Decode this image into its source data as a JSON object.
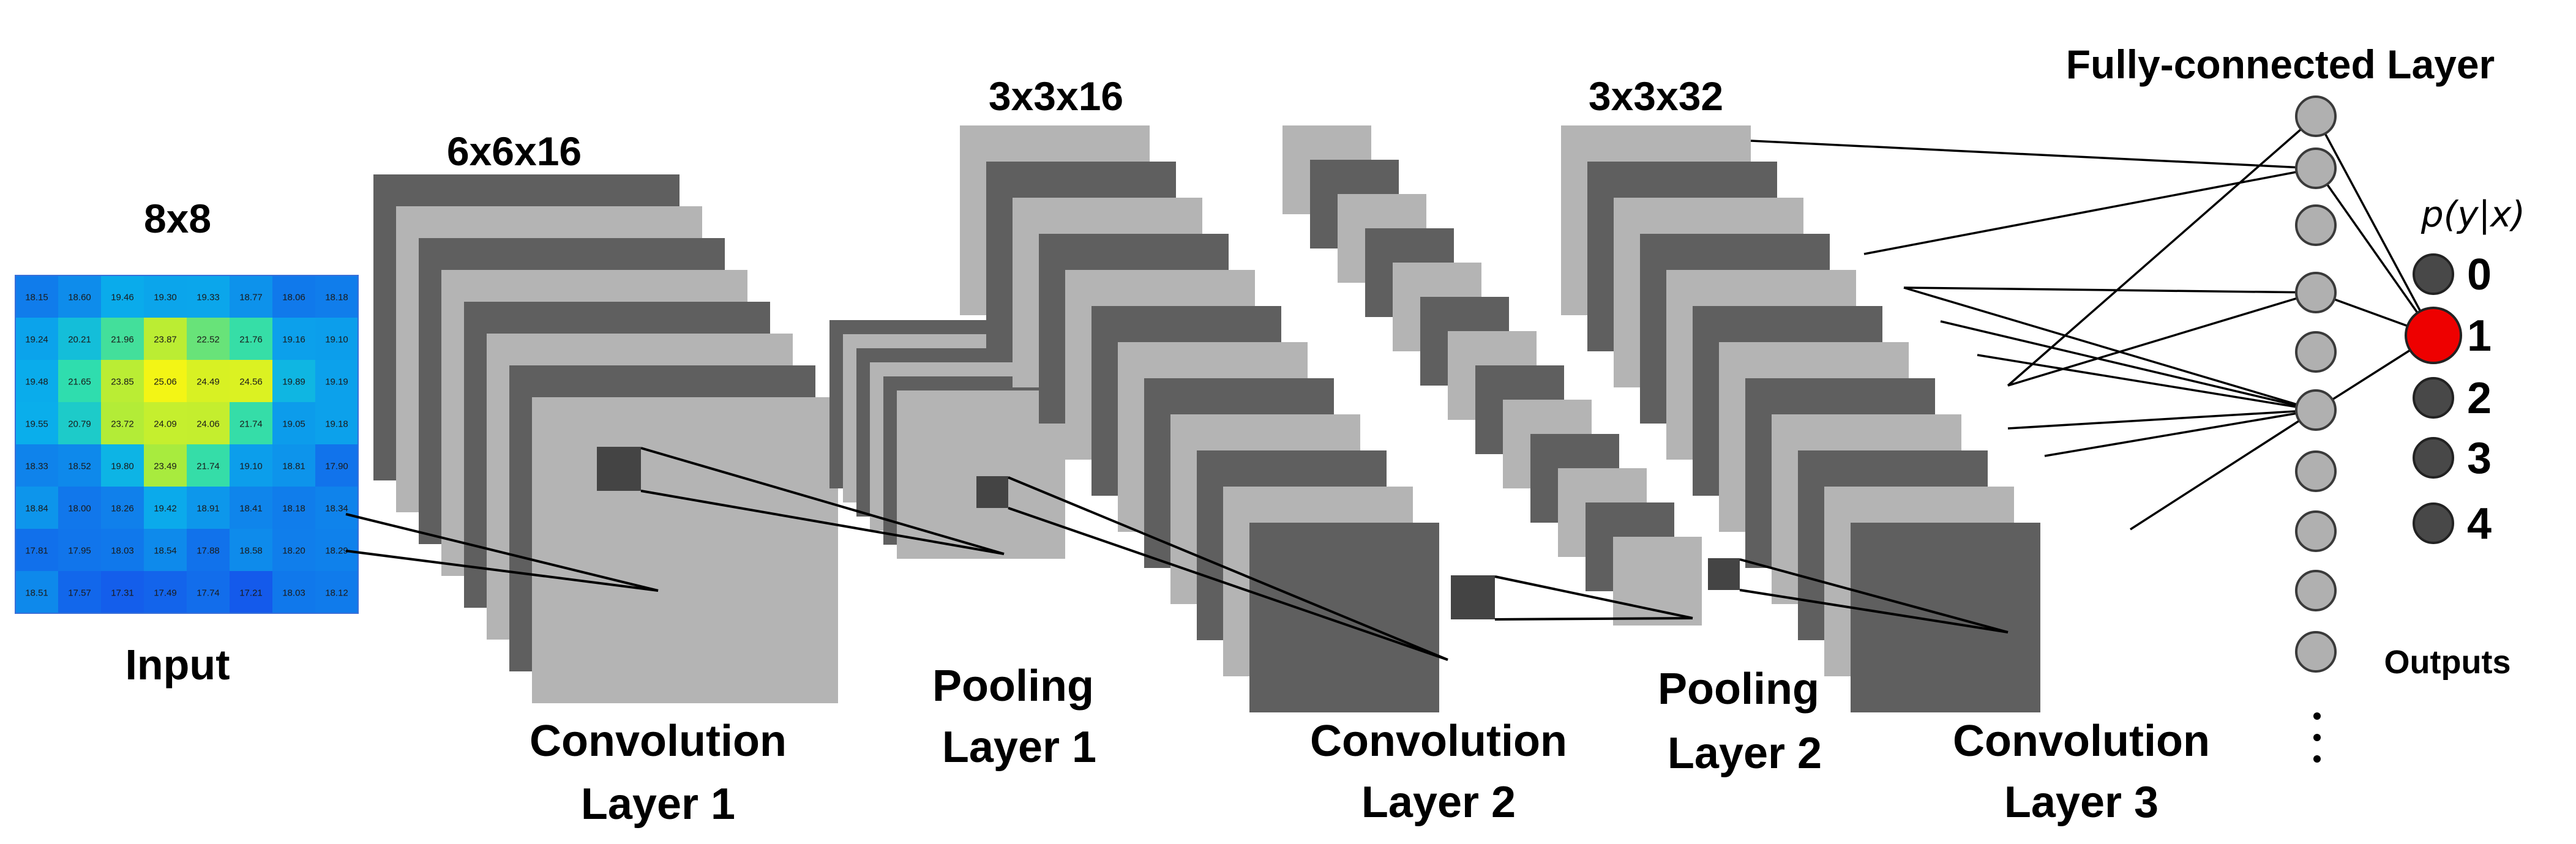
{
  "labels": {
    "input_size": "8x8",
    "input": "Input",
    "conv1_size": "6x6x16",
    "conv1_line1": "Convolution",
    "conv1_line2": "Layer 1",
    "pool1_size": "3x3x16",
    "pool1_line1": "Pooling",
    "pool1_line2": "Layer 1",
    "conv2_line1": "Convolution",
    "conv2_line2": "Layer 2",
    "conv3_size": "3x3x32",
    "pool2_line1": "Pooling",
    "pool2_line2": "Layer 2",
    "conv3_line1": "Convolution",
    "conv3_line2": "Layer 3",
    "fc": "Fully-connected Layer",
    "outputs": "Outputs",
    "prob": "p(y|x)"
  },
  "input_grid": [
    [
      "18.15",
      "18.60",
      "19.46",
      "19.30",
      "19.33",
      "18.77",
      "18.06",
      "18.18"
    ],
    [
      "19.24",
      "20.21",
      "21.96",
      "23.87",
      "22.52",
      "21.76",
      "19.16",
      "19.10"
    ],
    [
      "19.48",
      "21.65",
      "23.85",
      "25.06",
      "24.49",
      "24.56",
      "19.89",
      "19.19"
    ],
    [
      "19.55",
      "20.79",
      "23.72",
      "24.09",
      "24.06",
      "21.74",
      "19.05",
      "19.18"
    ],
    [
      "18.33",
      "18.52",
      "19.80",
      "23.49",
      "21.74",
      "19.10",
      "18.81",
      "17.90"
    ],
    [
      "18.84",
      "18.00",
      "18.26",
      "19.42",
      "18.91",
      "18.41",
      "18.18",
      "18.34"
    ],
    [
      "17.81",
      "17.95",
      "18.03",
      "18.54",
      "17.88",
      "18.58",
      "18.20",
      "18.29"
    ],
    [
      "18.51",
      "17.57",
      "17.31",
      "17.49",
      "17.74",
      "17.21",
      "18.03",
      "18.12"
    ]
  ],
  "outputs": [
    "0",
    "1",
    "2",
    "3",
    "4"
  ],
  "active_output": 1,
  "colors": {
    "dark": "#5f5f5f",
    "light": "#b4b4b4",
    "node": "#b0b0b0",
    "active": "#ee0000",
    "out_node": "#484848"
  }
}
